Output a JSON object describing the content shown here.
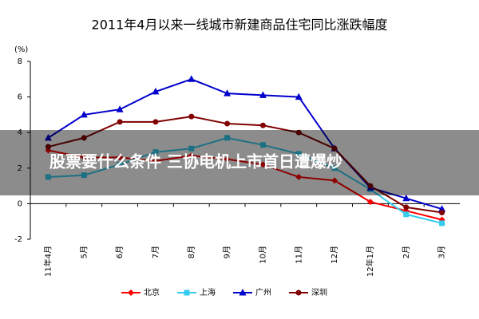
{
  "chart_data": {
    "type": "line",
    "title": "2011年4月以来一线城市新建商品住宅同比涨跌幅度",
    "y_label": "(%)",
    "categories": [
      "11年4月",
      "5月",
      "6月",
      "7月",
      "8月",
      "9月",
      "10月",
      "11月",
      "12月",
      "12年1月",
      "2月",
      "3月"
    ],
    "series": [
      {
        "name": "北京",
        "color": "#ff0000",
        "marker": "diamond",
        "values": [
          3.0,
          2.6,
          2.6,
          2.4,
          2.7,
          2.5,
          2.2,
          1.5,
          1.3,
          0.1,
          -0.4,
          -0.9
        ]
      },
      {
        "name": "上海",
        "color": "#33ccee",
        "marker": "square",
        "values": [
          1.5,
          1.6,
          2.2,
          2.9,
          3.1,
          3.7,
          3.3,
          2.8,
          2.0,
          0.8,
          -0.6,
          -1.1
        ]
      },
      {
        "name": "广州",
        "color": "#0000cc",
        "marker": "triangle",
        "values": [
          3.7,
          5.0,
          5.3,
          6.3,
          7.0,
          6.2,
          6.1,
          6.0,
          3.1,
          0.9,
          0.3,
          -0.3
        ]
      },
      {
        "name": "深圳",
        "color": "#800000",
        "marker": "circle",
        "values": [
          3.2,
          3.7,
          4.6,
          4.6,
          4.9,
          4.5,
          4.4,
          4.0,
          3.1,
          1.0,
          -0.2,
          -0.5
        ]
      }
    ],
    "ylim": [
      -2,
      8
    ],
    "yticks": [
      -2,
      0,
      2,
      4,
      6,
      8
    ]
  },
  "banner": "股票要什么条件 三协电机上市首日遭爆炒"
}
